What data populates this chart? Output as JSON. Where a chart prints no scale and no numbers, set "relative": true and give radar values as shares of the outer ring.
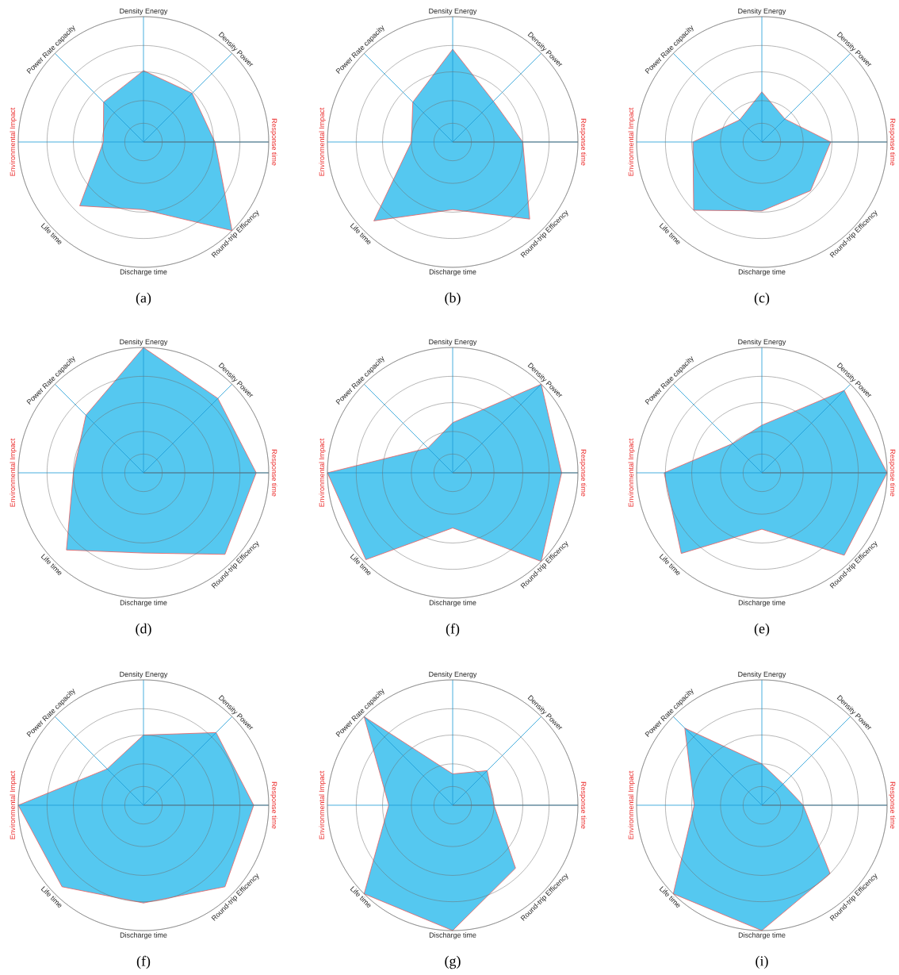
{
  "chart_data": [
    {
      "type": "radar",
      "title": "(a)",
      "categories": [
        "Density Energy",
        "Density Power",
        "Response time",
        "Round-trip Efficency",
        "Discharge time",
        "Life time",
        "Environmental Impact",
        "Power Rate capacity"
      ],
      "relative": true,
      "grid": true,
      "series": [
        {
          "color": "#55c8f0",
          "values": [
            0.57,
            0.55,
            0.57,
            1.0,
            0.54,
            0.72,
            0.32,
            0.45
          ]
        }
      ]
    },
    {
      "type": "radar",
      "title": "(b)",
      "categories": [
        "Density Energy",
        "Density Power",
        "Response time",
        "Round-trip Efficency",
        "Discharge time",
        "Life time",
        "Environmental Impact",
        "Power Rate capacity"
      ],
      "relative": true,
      "grid": true,
      "series": [
        {
          "color": "#55c8f0",
          "values": [
            0.74,
            0.46,
            0.56,
            0.87,
            0.54,
            0.89,
            0.33,
            0.45
          ]
        }
      ]
    },
    {
      "type": "radar",
      "title": "(c)",
      "categories": [
        "Density Energy",
        "Density Power",
        "Response time",
        "Round-trip Efficency",
        "Discharge time",
        "Life time",
        "Environmental Impact",
        "Power Rate capacity"
      ],
      "relative": true,
      "grid": true,
      "series": [
        {
          "color": "#55c8f0",
          "values": [
            0.4,
            0.26,
            0.55,
            0.55,
            0.55,
            0.77,
            0.55,
            0.25
          ]
        }
      ]
    },
    {
      "type": "radar",
      "title": "(d)",
      "categories": [
        "Density Energy",
        "Density Power",
        "Response time",
        "Round-trip Efficency",
        "Discharge time",
        "Life time",
        "Environmental Impact",
        "Power Rate capacity"
      ],
      "relative": true,
      "grid": true,
      "series": [
        {
          "color": "#55c8f0",
          "values": [
            1.0,
            0.84,
            0.9,
            0.92,
            0.64,
            0.87,
            0.56,
            0.65
          ]
        }
      ]
    },
    {
      "type": "radar",
      "title": "(f)",
      "categories": [
        "Density Energy",
        "Density Power",
        "Response time",
        "Round-trip Efficency",
        "Discharge time",
        "Life time",
        "Environmental Impact",
        "Power Rate capacity"
      ],
      "relative": true,
      "grid": true,
      "series": [
        {
          "color": "#55c8f0",
          "values": [
            0.4,
            1.0,
            0.87,
            1.0,
            0.44,
            0.98,
            1.0,
            0.28
          ]
        }
      ]
    },
    {
      "type": "radar",
      "title": "(e)",
      "categories": [
        "Density Energy",
        "Density Power",
        "Response time",
        "Round-trip Efficency",
        "Discharge time",
        "Life time",
        "Environmental Impact",
        "Power Rate capacity"
      ],
      "relative": true,
      "grid": true,
      "series": [
        {
          "color": "#55c8f0",
          "values": [
            0.38,
            0.93,
            1.0,
            0.93,
            0.45,
            0.91,
            0.78,
            0.33
          ]
        }
      ]
    },
    {
      "type": "radar",
      "title": "(f)",
      "categories": [
        "Density Energy",
        "Density Power",
        "Response time",
        "Round-trip Efficency",
        "Discharge time",
        "Life time",
        "Environmental Impact",
        "Power Rate capacity"
      ],
      "relative": true,
      "grid": true,
      "series": [
        {
          "color": "#55c8f0",
          "values": [
            0.56,
            0.82,
            0.88,
            0.92,
            0.78,
            0.92,
            1.0,
            0.41
          ]
        }
      ]
    },
    {
      "type": "radar",
      "title": "(g)",
      "categories": [
        "Density Energy",
        "Density Power",
        "Response time",
        "Round-trip Efficency",
        "Discharge time",
        "Life time",
        "Environmental Impact",
        "Power Rate capacity"
      ],
      "relative": true,
      "grid": true,
      "series": [
        {
          "color": "#55c8f0",
          "values": [
            0.25,
            0.39,
            0.33,
            0.71,
            1.0,
            1.0,
            0.51,
            1.0
          ]
        }
      ]
    },
    {
      "type": "radar",
      "title": "(i)",
      "categories": [
        "Density Energy",
        "Density Power",
        "Response time",
        "Round-trip Efficency",
        "Discharge time",
        "Life time",
        "Environmental Impact",
        "Power Rate capacity"
      ],
      "relative": true,
      "grid": true,
      "series": [
        {
          "color": "#55c8f0",
          "values": [
            0.33,
            0.24,
            0.33,
            0.77,
            1.0,
            1.0,
            0.54,
            0.87
          ]
        }
      ]
    }
  ]
}
